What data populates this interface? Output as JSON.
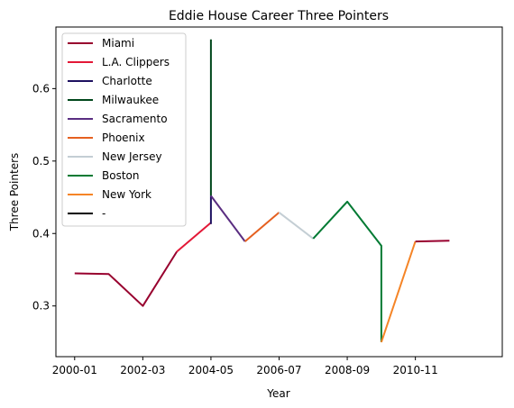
{
  "chart_data": {
    "type": "line",
    "title": "Eddie House Career Three Pointers",
    "xlabel": "Year",
    "ylabel": "Three Pointers",
    "x_ticks": [
      "2000-01",
      "2002-03",
      "2004-05",
      "2006-07",
      "2008-09",
      "2010-11"
    ],
    "y_ticks": [
      0.3,
      0.4,
      0.5,
      0.6
    ],
    "ylim": [
      0.23,
      0.685
    ],
    "xlim": [
      -0.55,
      12.55
    ],
    "legend_position": "upper-left",
    "legend": [
      {
        "name": "Miami",
        "color": "#98002E"
      },
      {
        "name": "L.A. Clippers",
        "color": "#E31837"
      },
      {
        "name": "Charlotte",
        "color": "#1D1160"
      },
      {
        "name": "Milwaukee",
        "color": "#00471B"
      },
      {
        "name": "Sacramento",
        "color": "#5A2D81"
      },
      {
        "name": "Phoenix",
        "color": "#E56020"
      },
      {
        "name": "New Jersey",
        "color": "#C4CED4"
      },
      {
        "name": "Boston",
        "color": "#007A33"
      },
      {
        "name": "New York",
        "color": "#F58426"
      },
      {
        "name": "-",
        "color": "#000000"
      }
    ],
    "series": [
      {
        "name": "Miami",
        "color": "#98002E",
        "points": [
          [
            0,
            0.345
          ],
          [
            1,
            0.344
          ],
          [
            2,
            0.3
          ],
          [
            3,
            0.375
          ]
        ]
      },
      {
        "name": "L.A. Clippers",
        "color": "#E31837",
        "points": [
          [
            3,
            0.375
          ],
          [
            4,
            0.415
          ]
        ]
      },
      {
        "name": "Charlotte",
        "color": "#1D1160",
        "points": [
          [
            4,
            0.413
          ],
          [
            4,
            0.452
          ]
        ]
      },
      {
        "name": "Milwaukee",
        "color": "#00471B",
        "points": [
          [
            4,
            0.452
          ],
          [
            4,
            0.668
          ]
        ]
      },
      {
        "name": "Sacramento",
        "color": "#5A2D81",
        "points": [
          [
            4,
            0.452
          ],
          [
            5,
            0.389
          ]
        ]
      },
      {
        "name": "Phoenix",
        "color": "#E56020",
        "points": [
          [
            5,
            0.389
          ],
          [
            6,
            0.429
          ]
        ]
      },
      {
        "name": "New Jersey",
        "color": "#C4CED4",
        "points": [
          [
            6,
            0.429
          ],
          [
            7,
            0.393
          ]
        ]
      },
      {
        "name": "Boston",
        "color": "#007A33",
        "points": [
          [
            7,
            0.393
          ],
          [
            8,
            0.444
          ],
          [
            9,
            0.383
          ],
          [
            9,
            0.25
          ]
        ]
      },
      {
        "name": "New York",
        "color": "#F58426",
        "points": [
          [
            9,
            0.25
          ],
          [
            10,
            0.389
          ]
        ]
      },
      {
        "name": "Miami",
        "color": "#98002E",
        "points": [
          [
            10,
            0.389
          ],
          [
            11,
            0.39
          ]
        ]
      }
    ]
  }
}
